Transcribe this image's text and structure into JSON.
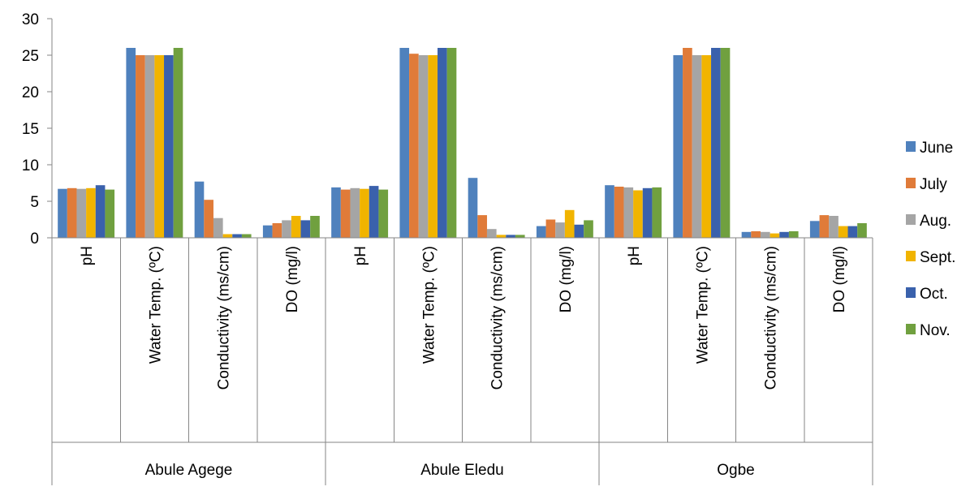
{
  "chart_data": {
    "type": "bar",
    "title": "",
    "xlabel": "",
    "ylabel": "",
    "ylim": [
      0,
      30
    ],
    "yticks": [
      "0",
      "5",
      "10",
      "15",
      "20",
      "25",
      "30"
    ],
    "grid": false,
    "legend_position": "right",
    "groups": [
      {
        "name": "Abule Agege",
        "categories": [
          "pH",
          "Water Temp. (ºC)",
          "Conductivity (ms/cm)",
          "DO (mg/l)"
        ]
      },
      {
        "name": "Abule Eledu",
        "categories": [
          "pH",
          "Water Temp. (ºC)",
          "Conductivity (ms/cm)",
          "DO (mg/l)"
        ]
      },
      {
        "name": "Ogbe",
        "categories": [
          "pH",
          "Water Temp. (ºC)",
          "Conductivity (ms/cm)",
          "DO (mg/l)"
        ]
      }
    ],
    "series": [
      {
        "name": "June",
        "color": "#4F81BD",
        "values": [
          6.7,
          26,
          7.7,
          1.7,
          6.9,
          26,
          8.2,
          1.6,
          7.2,
          25,
          0.8,
          2.3
        ]
      },
      {
        "name": "July",
        "color": "#E07B39",
        "values": [
          6.8,
          25,
          5.2,
          2.0,
          6.6,
          25.2,
          3.1,
          2.5,
          7.0,
          26,
          0.9,
          3.1
        ]
      },
      {
        "name": "Aug.",
        "color": "#A5A5A5",
        "values": [
          6.7,
          25,
          2.7,
          2.4,
          6.8,
          25,
          1.2,
          2.1,
          6.9,
          25,
          0.8,
          3.0
        ]
      },
      {
        "name": "Sept.",
        "color": "#F1B400",
        "values": [
          6.8,
          25,
          0.5,
          3.0,
          6.7,
          25,
          0.4,
          3.8,
          6.5,
          25,
          0.6,
          1.6
        ]
      },
      {
        "name": "Oct.",
        "color": "#3A61AC",
        "values": [
          7.2,
          25,
          0.5,
          2.4,
          7.1,
          26,
          0.4,
          1.8,
          6.8,
          26,
          0.8,
          1.6
        ]
      },
      {
        "name": "Nov.",
        "color": "#70A03F",
        "values": [
          6.6,
          26,
          0.5,
          3.0,
          6.6,
          26,
          0.4,
          2.4,
          6.9,
          26,
          0.9,
          2.0
        ]
      }
    ]
  }
}
